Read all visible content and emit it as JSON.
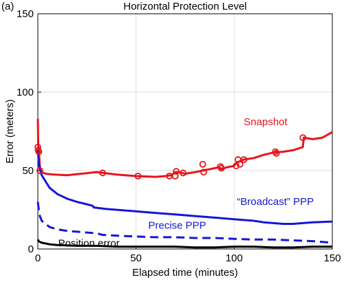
{
  "panel_label": "(a)",
  "chart_data": {
    "type": "line",
    "title": "Horizontal Protection Level",
    "xlabel": "Elapsed time (minutes)",
    "ylabel": "Error (meters)",
    "xlim": [
      0,
      150
    ],
    "ylim": [
      0,
      150
    ],
    "xticks": [
      0,
      50,
      100,
      150
    ],
    "yticks": [
      0,
      50,
      100,
      150
    ],
    "grid": true,
    "series": [
      {
        "name": "Snapshot",
        "color": "#e8141b",
        "style": "solid",
        "markers": "circle-open",
        "x": [
          0,
          0.2,
          0.5,
          1,
          1.5,
          2,
          4,
          8,
          15,
          22,
          30,
          40,
          50,
          60,
          65,
          68,
          70,
          72,
          75,
          80,
          84,
          88,
          92,
          94,
          96,
          100,
          101,
          103,
          105,
          110,
          115,
          120,
          125,
          130,
          135,
          135.5,
          140,
          145,
          150
        ],
        "y": [
          83,
          66,
          63,
          53,
          50,
          49,
          48,
          47.5,
          47,
          48,
          49,
          47.5,
          46.5,
          46,
          46.5,
          47,
          49,
          49,
          48,
          49,
          50,
          51,
          52,
          51,
          52,
          53,
          55,
          56,
          57,
          58,
          60,
          61.5,
          62,
          63,
          65,
          71,
          70,
          71,
          74.5
        ]
      },
      {
        "name": "“Broadcast” PPP",
        "color": "#1515d8",
        "style": "solid",
        "x": [
          0,
          0.5,
          1,
          2,
          4,
          6,
          10,
          15,
          20,
          25,
          28,
          28.5,
          35,
          40,
          50,
          60,
          70,
          80,
          90,
          100,
          110,
          115,
          120,
          125,
          130,
          140,
          150
        ],
        "y": [
          63,
          55,
          51,
          47,
          43,
          39,
          35,
          32,
          30,
          28.5,
          27.5,
          26.5,
          25.5,
          25,
          24,
          23,
          22,
          21,
          20,
          19,
          18,
          17,
          16.5,
          16,
          16,
          17,
          17.5
        ]
      },
      {
        "name": "Precise PPP",
        "color": "#1515d8",
        "style": "dashed",
        "x": [
          0,
          0.5,
          1,
          2,
          4,
          6,
          10,
          15,
          20,
          25,
          30,
          33,
          40,
          50,
          60,
          70,
          80,
          90,
          100,
          110,
          120,
          130,
          140,
          150
        ],
        "y": [
          30,
          25,
          21,
          18,
          16,
          14,
          12.5,
          11.5,
          11,
          10.5,
          10,
          9,
          8.5,
          8,
          7.5,
          7.5,
          7,
          7,
          6.5,
          6,
          6,
          5.5,
          5,
          4
        ]
      },
      {
        "name": "Position error",
        "color": "#000000",
        "style": "solid",
        "x": [
          0,
          0.5,
          1,
          2,
          4,
          6,
          10,
          20,
          30,
          40,
          50,
          60,
          70,
          80,
          90,
          100,
          110,
          120,
          130,
          140,
          150
        ],
        "y": [
          6,
          5,
          4.5,
          4,
          3.5,
          3,
          2.5,
          2,
          2,
          1.5,
          1.5,
          1.5,
          1.5,
          1,
          1,
          1.5,
          1.5,
          1,
          1,
          1.5,
          1.5
        ]
      }
    ],
    "snapshot_markers": {
      "x": [
        0,
        0.2,
        0.5,
        1,
        33,
        51,
        67,
        70,
        70.5,
        74,
        84,
        84.5,
        93,
        93.5,
        101,
        102,
        103,
        105,
        121,
        121.5,
        135
      ],
      "y": [
        65,
        63,
        62,
        50,
        48.5,
        46.5,
        46.5,
        46.5,
        49.5,
        48.5,
        54,
        49,
        52.5,
        51.5,
        53,
        57,
        54,
        57,
        62,
        61,
        71
      ]
    },
    "annotations": [
      {
        "text": "Snapshot",
        "x": 116,
        "y": 79,
        "color": "#e8141b"
      },
      {
        "text": "“Broadcast” PPP",
        "x": 121,
        "y": 28,
        "color": "#1515d8"
      },
      {
        "text": "Precise PPP",
        "x": 71,
        "y": 13,
        "color": "#1515d8"
      },
      {
        "text": "Position error",
        "x": 26,
        "y": 1.5,
        "color": "#000000"
      }
    ]
  }
}
